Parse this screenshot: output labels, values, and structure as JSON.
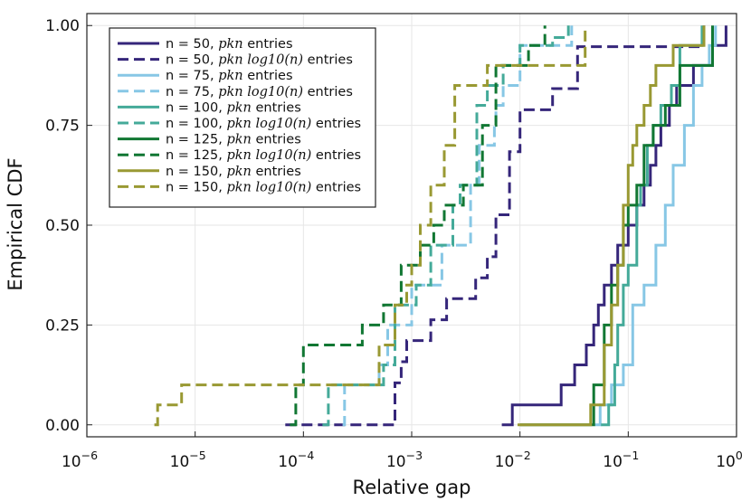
{
  "chart_data": {
    "type": "line",
    "title": "",
    "xlabel": "Relative gap",
    "ylabel": "Empirical CDF",
    "xscale": "log10",
    "xlim": [
      1e-06,
      1
    ],
    "ylim": [
      -0.03,
      1.03
    ],
    "grid": true,
    "legend_position": "top-left",
    "xticks": [
      {
        "value": 1e-06,
        "base": "10",
        "exp": "−6"
      },
      {
        "value": 1e-05,
        "base": "10",
        "exp": "−5"
      },
      {
        "value": 0.0001,
        "base": "10",
        "exp": "−4"
      },
      {
        "value": 0.001,
        "base": "10",
        "exp": "−3"
      },
      {
        "value": 0.01,
        "base": "10",
        "exp": "−2"
      },
      {
        "value": 0.1,
        "base": "10",
        "exp": "−1"
      },
      {
        "value": 1,
        "base": "10",
        "exp": "0"
      }
    ],
    "yticks": [
      {
        "value": 0.0,
        "label": "0.00"
      },
      {
        "value": 0.25,
        "label": "0.25"
      },
      {
        "value": 0.5,
        "label": "0.50"
      },
      {
        "value": 0.75,
        "label": "0.75"
      },
      {
        "value": 1.0,
        "label": "1.00"
      }
    ],
    "series": [
      {
        "name": "n = 50, pkn entries",
        "label_prefix": "n = 50,",
        "label_math": "pkn",
        "label_suffix": "entries",
        "color": "#35267a",
        "dash": "solid",
        "x": [
          0.0068,
          0.0085,
          0.024,
          0.032,
          0.041,
          0.048,
          0.053,
          0.06,
          0.07,
          0.08,
          0.1,
          0.12,
          0.14,
          0.16,
          0.18,
          0.2,
          0.24,
          0.28,
          0.4,
          0.6,
          0.8
        ],
        "y": [
          0.0,
          0.05,
          0.1,
          0.15,
          0.2,
          0.25,
          0.3,
          0.35,
          0.4,
          0.45,
          0.5,
          0.55,
          0.6,
          0.65,
          0.7,
          0.75,
          0.8,
          0.85,
          0.9,
          0.95,
          1.0
        ]
      },
      {
        "name": "n = 50, pkn log10(n) entries",
        "label_prefix": "n = 50,",
        "label_math": "pkn log10(n)",
        "label_suffix": "entries",
        "color": "#35267a",
        "dash": "dashed",
        "x": [
          6.8e-05,
          0.0007,
          0.0008,
          0.0009,
          0.0015,
          0.0021,
          0.0039,
          0.005,
          0.006,
          0.008,
          0.01,
          0.02,
          0.034,
          0.5
        ],
        "y": [
          0.0,
          0.105,
          0.158,
          0.211,
          0.263,
          0.316,
          0.368,
          0.421,
          0.526,
          0.684,
          0.789,
          0.842,
          0.947,
          1.0
        ]
      },
      {
        "name": "n = 75, pkn entries",
        "label_prefix": "n = 75,",
        "label_math": "pkn",
        "label_suffix": "entries",
        "color": "#87c7e5",
        "dash": "solid",
        "x": [
          0.049,
          0.055,
          0.07,
          0.09,
          0.11,
          0.14,
          0.18,
          0.22,
          0.26,
          0.33,
          0.4,
          0.48,
          0.56,
          0.64
        ],
        "y": [
          0.0,
          0.05,
          0.1,
          0.15,
          0.3,
          0.35,
          0.45,
          0.55,
          0.65,
          0.75,
          0.85,
          0.9,
          0.95,
          1.0
        ]
      },
      {
        "name": "n = 75, pkn log10(n) entries",
        "label_prefix": "n = 75,",
        "label_math": "pkn log10(n)",
        "label_suffix": "entries",
        "color": "#87c7e5",
        "dash": "dashed",
        "x": [
          0.00023,
          0.00024,
          0.0005,
          0.0006,
          0.001,
          0.0019,
          0.0035,
          0.0042,
          0.0058,
          0.006,
          0.007,
          0.01,
          0.03
        ],
        "y": [
          0.0,
          0.1,
          0.15,
          0.25,
          0.35,
          0.45,
          0.6,
          0.7,
          0.75,
          0.8,
          0.85,
          0.95,
          1.0
        ]
      },
      {
        "name": "n = 100, pkn entries",
        "label_prefix": "n = 100,",
        "label_math": "pkn",
        "label_suffix": "entries",
        "color": "#44aa99",
        "dash": "solid",
        "x": [
          0.056,
          0.066,
          0.075,
          0.08,
          0.09,
          0.1,
          0.12,
          0.13,
          0.15,
          0.17,
          0.2,
          0.25,
          0.3,
          0.48
        ],
        "y": [
          0.0,
          0.05,
          0.15,
          0.25,
          0.35,
          0.4,
          0.55,
          0.6,
          0.7,
          0.75,
          0.8,
          0.85,
          0.95,
          1.0
        ]
      },
      {
        "name": "n = 100, pkn log10(n) entries",
        "label_prefix": "n = 100,",
        "label_math": "pkn log10(n)",
        "label_suffix": "entries",
        "color": "#44aa99",
        "dash": "dashed",
        "x": [
          0.00015,
          0.00017,
          0.00055,
          0.0007,
          0.0011,
          0.0015,
          0.0024,
          0.0028,
          0.004,
          0.005,
          0.007,
          0.01,
          0.02,
          0.028
        ],
        "y": [
          0.0,
          0.1,
          0.15,
          0.3,
          0.35,
          0.45,
          0.55,
          0.6,
          0.8,
          0.85,
          0.9,
          0.95,
          0.97,
          1.0
        ]
      },
      {
        "name": "n = 125, pkn entries",
        "label_prefix": "n = 125,",
        "label_math": "pkn",
        "label_suffix": "entries",
        "color": "#117733",
        "dash": "solid",
        "x": [
          0.01,
          0.048,
          0.06,
          0.07,
          0.08,
          0.09,
          0.1,
          0.12,
          0.14,
          0.17,
          0.22,
          0.3,
          0.6
        ],
        "y": [
          0.0,
          0.1,
          0.25,
          0.35,
          0.4,
          0.5,
          0.55,
          0.6,
          0.7,
          0.75,
          0.8,
          0.9,
          1.0
        ]
      },
      {
        "name": "n = 125, pkn log10(n) entries",
        "label_prefix": "n = 125,",
        "label_math": "pkn log10(n)",
        "label_suffix": "entries",
        "color": "#117733",
        "dash": "dashed",
        "x": [
          7.5e-05,
          8.5e-05,
          0.0001,
          0.00035,
          0.00055,
          0.0008,
          0.0012,
          0.0016,
          0.002,
          0.003,
          0.0045,
          0.006,
          0.012,
          0.017
        ],
        "y": [
          0.0,
          0.1,
          0.2,
          0.25,
          0.3,
          0.4,
          0.45,
          0.5,
          0.55,
          0.6,
          0.75,
          0.9,
          0.95,
          1.0
        ]
      },
      {
        "name": "n = 150, pkn entries",
        "label_prefix": "n = 150,",
        "label_math": "pkn",
        "label_suffix": "entries",
        "color": "#999933",
        "dash": "solid",
        "x": [
          0.0095,
          0.045,
          0.06,
          0.07,
          0.08,
          0.09,
          0.1,
          0.11,
          0.12,
          0.14,
          0.16,
          0.18,
          0.26,
          0.5
        ],
        "y": [
          0.0,
          0.05,
          0.2,
          0.3,
          0.4,
          0.55,
          0.65,
          0.7,
          0.75,
          0.8,
          0.85,
          0.9,
          0.95,
          1.0
        ]
      },
      {
        "name": "n = 150, pkn log10(n) entries",
        "label_prefix": "n = 150,",
        "label_math": "pkn log10(n)",
        "label_suffix": "entries",
        "color": "#999933",
        "dash": "dashed",
        "x": [
          4.2e-06,
          4.5e-06,
          7.5e-06,
          0.0005,
          0.0007,
          0.0009,
          0.001,
          0.0012,
          0.0015,
          0.002,
          0.0025,
          0.005,
          0.04
        ],
        "y": [
          0.0,
          0.05,
          0.1,
          0.2,
          0.3,
          0.35,
          0.4,
          0.5,
          0.6,
          0.7,
          0.85,
          0.9,
          1.0
        ]
      }
    ]
  }
}
